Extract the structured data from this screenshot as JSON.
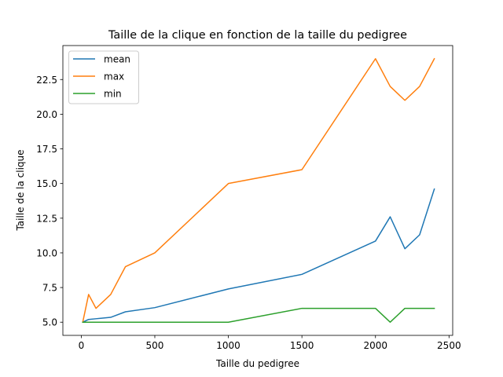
{
  "chart_data": {
    "type": "line",
    "title": "Taille de la clique en fonction de la taille du pedigree",
    "xlabel": "Taille du pedigree",
    "ylabel": "Taille de la clique",
    "xlim": [
      -125,
      2525
    ],
    "ylim": [
      4.05,
      24.95
    ],
    "xticks": [
      0,
      500,
      1000,
      1500,
      2000,
      2500
    ],
    "xtick_labels": [
      "0",
      "500",
      "1000",
      "1500",
      "2000",
      "2500"
    ],
    "yticks": [
      5.0,
      7.5,
      10.0,
      12.5,
      15.0,
      17.5,
      20.0,
      22.5
    ],
    "ytick_labels": [
      "5.0",
      "7.5",
      "10.0",
      "12.5",
      "15.0",
      "17.5",
      "20.0",
      "22.5"
    ],
    "grid": false,
    "legend_position": "top-left",
    "x": [
      10,
      50,
      100,
      200,
      300,
      500,
      1000,
      1500,
      2000,
      2100,
      2200,
      2300,
      2400
    ],
    "series": [
      {
        "name": "mean",
        "color": "#1f77b4",
        "values": [
          5.0,
          5.2,
          5.25,
          5.35,
          5.75,
          6.05,
          7.4,
          8.45,
          10.85,
          12.6,
          10.3,
          11.3,
          14.6
        ]
      },
      {
        "name": "max",
        "color": "#ff7f0e",
        "values": [
          5.0,
          7.0,
          6.0,
          7.0,
          9.0,
          10.0,
          15.0,
          16.0,
          24.0,
          22.0,
          21.0,
          22.0,
          24.0
        ]
      },
      {
        "name": "min",
        "color": "#2ca02c",
        "values": [
          5.0,
          5.0,
          5.0,
          5.0,
          5.0,
          5.0,
          5.0,
          6.0,
          6.0,
          5.0,
          6.0,
          6.0,
          6.0
        ]
      }
    ]
  }
}
